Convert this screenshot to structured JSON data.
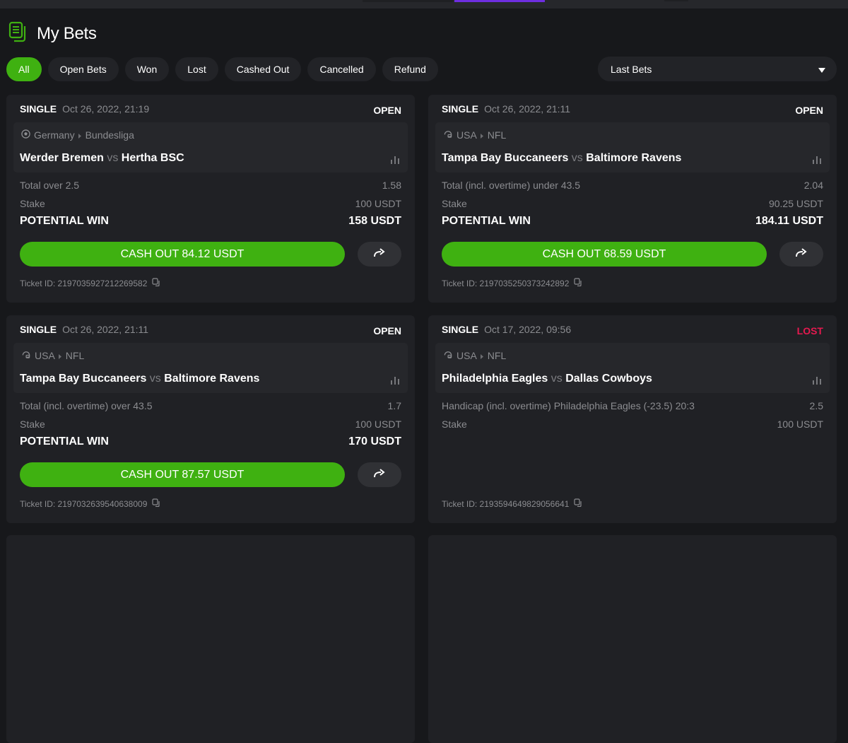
{
  "page": {
    "title": "My Bets",
    "title_icon": "bets-document-icon"
  },
  "filters": [
    {
      "label": "All",
      "active": true
    },
    {
      "label": "Open Bets"
    },
    {
      "label": "Won"
    },
    {
      "label": "Lost"
    },
    {
      "label": "Cashed Out"
    },
    {
      "label": "Cancelled"
    },
    {
      "label": "Refund"
    }
  ],
  "sort_select": {
    "value": "Last Bets"
  },
  "colors": {
    "accent": "#3fb111",
    "lost": "#e5194f",
    "background": "#17181b",
    "card": "#202125"
  },
  "bets": [
    {
      "type": "SINGLE",
      "date": "Oct 26, 2022, 21:19",
      "status": "OPEN",
      "sport_icon": "soccer-ball-icon",
      "country": "Germany",
      "league": "Bundesliga",
      "home": "Werder Bremen",
      "vs": "vs",
      "away": "Hertha BSC",
      "market": "Total over 2.5",
      "odds": "1.58",
      "stake_label": "Stake",
      "stake": "100 USDT",
      "potential_label": "POTENTIAL WIN",
      "potential": "158 USDT",
      "cashout": "CASH OUT 84.12 USDT",
      "ticket": "Ticket ID: 2197035927212269582"
    },
    {
      "type": "SINGLE",
      "date": "Oct 26, 2022, 21:11",
      "status": "OPEN",
      "sport_icon": "football-helmet-icon",
      "country": "USA",
      "league": "NFL",
      "home": "Tampa Bay Buccaneers",
      "vs": "vs",
      "away": "Baltimore Ravens",
      "market": "Total (incl. overtime) under 43.5",
      "odds": "2.04",
      "stake_label": "Stake",
      "stake": "90.25 USDT",
      "potential_label": "POTENTIAL WIN",
      "potential": "184.11 USDT",
      "cashout": "CASH OUT 68.59 USDT",
      "ticket": "Ticket ID: 2197035250373242892"
    },
    {
      "type": "SINGLE",
      "date": "Oct 26, 2022, 21:11",
      "status": "OPEN",
      "sport_icon": "football-helmet-icon",
      "country": "USA",
      "league": "NFL",
      "home": "Tampa Bay Buccaneers",
      "vs": "vs",
      "away": "Baltimore Ravens",
      "market": "Total (incl. overtime) over 43.5",
      "odds": "1.7",
      "stake_label": "Stake",
      "stake": "100 USDT",
      "potential_label": "POTENTIAL WIN",
      "potential": "170 USDT",
      "cashout": "CASH OUT 87.57 USDT",
      "ticket": "Ticket ID: 2197032639540638009"
    },
    {
      "type": "SINGLE",
      "date": "Oct 17, 2022, 09:56",
      "status": "LOST",
      "sport_icon": "football-helmet-icon",
      "country": "USA",
      "league": "NFL",
      "home": "Philadelphia Eagles",
      "vs": "vs",
      "away": "Dallas Cowboys",
      "market": "Handicap (incl. overtime) Philadelphia Eagles (-23.5)  20:3",
      "odds": "2.5",
      "stake_label": "Stake",
      "stake": "100 USDT",
      "ticket": "Ticket ID: 2193594649829056641"
    }
  ]
}
